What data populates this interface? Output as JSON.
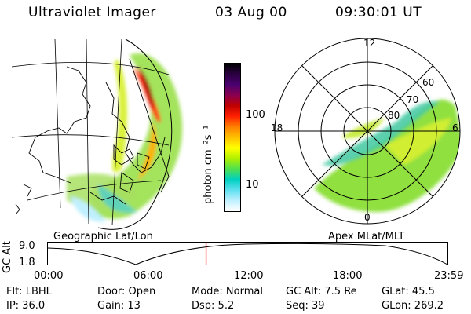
{
  "header": {
    "title": "Ultraviolet Imager",
    "date": "03 Aug 00",
    "time": "09:30:01 UT"
  },
  "left_panel": {
    "label": "Geographic Lat/Lon"
  },
  "right_panel": {
    "label": "Apex MLat/MLT",
    "mlt_labels": {
      "top": "12",
      "left": "18",
      "right": "6",
      "bottom": "0"
    },
    "lat_labels": [
      "60",
      "70",
      "80"
    ]
  },
  "colorbar": {
    "unit_label": "photon cm⁻²s⁻¹",
    "ticks": [
      "100",
      "10"
    ],
    "colors": [
      "#000000",
      "#2a0040",
      "#4a0070",
      "#8a0050",
      "#c00000",
      "#ff2000",
      "#ff8000",
      "#ffc000",
      "#ffff00",
      "#b0f000",
      "#50e050",
      "#00d0c0",
      "#60e0f0",
      "#c0f0ff",
      "#ffffff"
    ]
  },
  "timeline": {
    "y_label": "GC Alt",
    "y_ticks": [
      "9.0",
      "1.8"
    ],
    "x_ticks": [
      "00:00",
      "06:00",
      "12:00",
      "18:00",
      "23:59"
    ],
    "current_time_marker_fraction": 0.396
  },
  "info": {
    "row1": {
      "filter": "Flt: LBHL",
      "door": "Door: Open",
      "mode": "Mode: Normal",
      "gc_alt": "GC Alt: 7.5 Re",
      "glat": "GLat:   45.5"
    },
    "row2": {
      "ip": "IP: 36.0",
      "gain": "Gain: 13",
      "dsp": "Dsp:      5.2",
      "seq": "Seq: 39",
      "glon": "GLon: 269.2"
    }
  }
}
